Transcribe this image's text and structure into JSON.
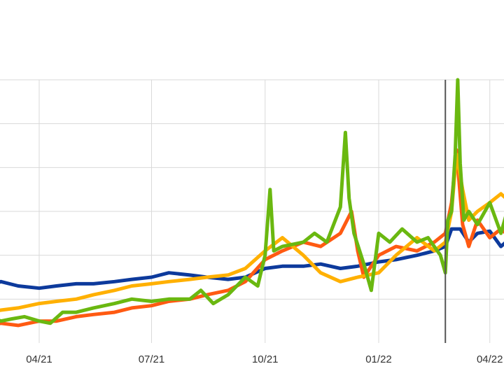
{
  "chart_data": {
    "type": "line",
    "title": "",
    "xlabel": "",
    "ylabel": "",
    "x_tick_labels": [
      "04/21",
      "07/21",
      "10/21",
      "01/22",
      "04/22"
    ],
    "x_tick_dates": [
      "2021-04-01",
      "2021-07-01",
      "2021-10-01",
      "2022-01-01",
      "2022-04-01"
    ],
    "xlim": [
      "2021-02-20",
      "2022-04-14"
    ],
    "ylim": [
      0,
      6
    ],
    "y_gridlines": [
      1,
      2,
      3,
      4,
      5,
      6
    ],
    "grid": true,
    "legend": "none",
    "event_marker": {
      "date": "2022-02-24",
      "color": "#555555"
    },
    "series": [
      {
        "color": "#0d3a9c",
        "x": [
          "2021-02-20",
          "2021-03-01",
          "2021-03-15",
          "2021-04-01",
          "2021-04-15",
          "2021-05-01",
          "2021-05-15",
          "2021-06-01",
          "2021-06-15",
          "2021-07-01",
          "2021-07-15",
          "2021-08-01",
          "2021-08-15",
          "2021-09-01",
          "2021-09-15",
          "2021-10-01",
          "2021-10-15",
          "2021-11-01",
          "2021-11-15",
          "2021-12-01",
          "2021-12-15",
          "2022-01-01",
          "2022-01-15",
          "2022-02-01",
          "2022-02-15",
          "2022-02-24",
          "2022-03-01",
          "2022-03-08",
          "2022-03-15",
          "2022-03-22",
          "2022-04-01",
          "2022-04-10",
          "2022-04-14"
        ],
        "values": [
          1.3,
          1.4,
          1.3,
          1.25,
          1.3,
          1.35,
          1.35,
          1.4,
          1.45,
          1.5,
          1.6,
          1.55,
          1.5,
          1.45,
          1.5,
          1.7,
          1.75,
          1.75,
          1.8,
          1.7,
          1.75,
          1.85,
          1.9,
          2.0,
          2.1,
          2.2,
          2.6,
          2.6,
          2.3,
          2.5,
          2.55,
          2.2,
          2.3
        ]
      },
      {
        "color": "#ff5a12",
        "x": [
          "2021-02-20",
          "2021-03-01",
          "2021-03-15",
          "2021-04-01",
          "2021-04-15",
          "2021-05-01",
          "2021-05-15",
          "2021-06-01",
          "2021-06-15",
          "2021-07-01",
          "2021-07-15",
          "2021-08-01",
          "2021-08-15",
          "2021-09-01",
          "2021-09-15",
          "2021-10-01",
          "2021-10-15",
          "2021-11-01",
          "2021-11-15",
          "2021-12-01",
          "2021-12-10",
          "2021-12-15",
          "2021-12-20",
          "2022-01-01",
          "2022-01-15",
          "2022-02-01",
          "2022-02-15",
          "2022-02-24",
          "2022-03-01",
          "2022-03-05",
          "2022-03-10",
          "2022-03-15",
          "2022-03-22",
          "2022-04-01",
          "2022-04-10",
          "2022-04-14"
        ],
        "values": [
          0.4,
          0.45,
          0.4,
          0.5,
          0.5,
          0.6,
          0.65,
          0.7,
          0.8,
          0.85,
          0.95,
          1.0,
          1.1,
          1.2,
          1.4,
          1.9,
          2.1,
          2.3,
          2.2,
          2.5,
          3.0,
          2.1,
          1.5,
          2.0,
          2.2,
          2.1,
          2.3,
          2.5,
          3.2,
          4.4,
          2.7,
          2.2,
          2.8,
          2.4,
          2.6,
          2.5
        ]
      },
      {
        "color": "#ffb000",
        "x": [
          "2021-02-20",
          "2021-03-01",
          "2021-03-15",
          "2021-04-01",
          "2021-04-15",
          "2021-05-01",
          "2021-05-15",
          "2021-06-01",
          "2021-06-15",
          "2021-07-01",
          "2021-07-15",
          "2021-08-01",
          "2021-08-15",
          "2021-09-01",
          "2021-09-15",
          "2021-10-01",
          "2021-10-15",
          "2021-11-01",
          "2021-11-15",
          "2021-12-01",
          "2021-12-15",
          "2022-01-01",
          "2022-01-15",
          "2022-02-01",
          "2022-02-15",
          "2022-02-24",
          "2022-03-01",
          "2022-03-05",
          "2022-03-10",
          "2022-03-15",
          "2022-03-22",
          "2022-04-01",
          "2022-04-10",
          "2022-04-14"
        ],
        "values": [
          0.7,
          0.75,
          0.8,
          0.9,
          0.95,
          1.0,
          1.1,
          1.2,
          1.3,
          1.35,
          1.4,
          1.45,
          1.5,
          1.55,
          1.7,
          2.1,
          2.4,
          2.0,
          1.6,
          1.4,
          1.5,
          1.6,
          2.0,
          2.4,
          2.1,
          2.3,
          3.0,
          4.3,
          3.5,
          2.8,
          3.0,
          3.2,
          3.4,
          3.3
        ]
      },
      {
        "color": "#6ab810",
        "x": [
          "2021-02-20",
          "2021-03-01",
          "2021-03-10",
          "2021-03-20",
          "2021-04-01",
          "2021-04-10",
          "2021-04-20",
          "2021-05-01",
          "2021-05-15",
          "2021-06-01",
          "2021-06-15",
          "2021-07-01",
          "2021-07-15",
          "2021-08-01",
          "2021-08-10",
          "2021-08-20",
          "2021-09-01",
          "2021-09-15",
          "2021-09-25",
          "2021-10-01",
          "2021-10-05",
          "2021-10-08",
          "2021-10-15",
          "2021-11-01",
          "2021-11-10",
          "2021-11-20",
          "2021-12-01",
          "2021-12-05",
          "2021-12-08",
          "2021-12-12",
          "2021-12-20",
          "2021-12-26",
          "2022-01-01",
          "2022-01-10",
          "2022-01-20",
          "2022-02-01",
          "2022-02-10",
          "2022-02-20",
          "2022-02-24",
          "2022-02-26",
          "2022-03-01",
          "2022-03-04",
          "2022-03-06",
          "2022-03-08",
          "2022-03-11",
          "2022-03-15",
          "2022-03-22",
          "2022-04-01",
          "2022-04-10",
          "2022-04-14"
        ],
        "values": [
          0.6,
          0.5,
          0.55,
          0.6,
          0.5,
          0.45,
          0.7,
          0.7,
          0.8,
          0.9,
          1.0,
          0.95,
          1.0,
          1.0,
          1.2,
          0.9,
          1.1,
          1.5,
          1.3,
          2.0,
          3.5,
          2.1,
          2.2,
          2.3,
          2.5,
          2.3,
          3.1,
          4.8,
          3.3,
          2.5,
          1.8,
          1.2,
          2.5,
          2.3,
          2.6,
          2.3,
          2.4,
          2.0,
          1.6,
          2.8,
          3.0,
          4.3,
          6.0,
          4.1,
          2.8,
          3.0,
          2.7,
          3.2,
          2.5,
          2.9
        ]
      }
    ]
  }
}
